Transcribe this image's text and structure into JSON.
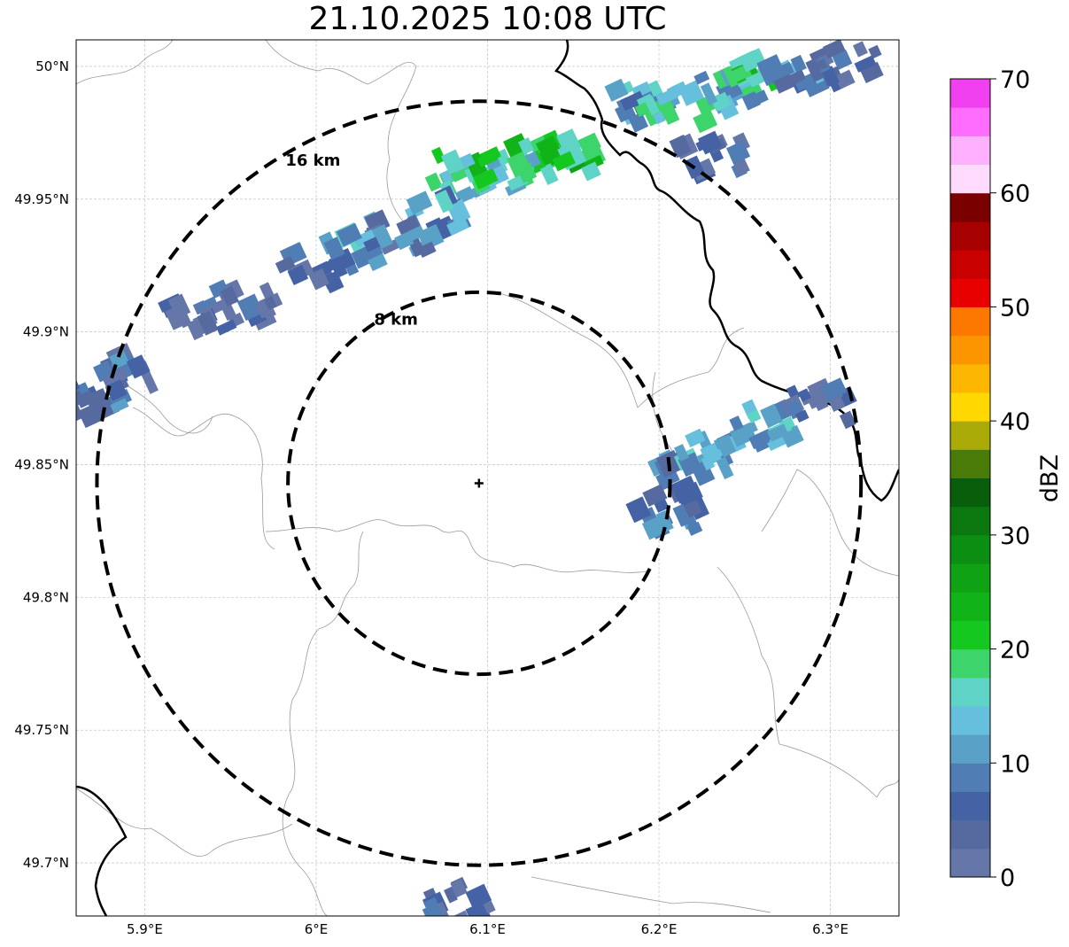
{
  "title": "21.10.2025 10:08 UTC",
  "map": {
    "x_ticks": [
      "5.9°E",
      "6°E",
      "6.1°E",
      "6.2°E",
      "6.3°E"
    ],
    "y_ticks": [
      "50°N",
      "49.95°N",
      "49.9°N",
      "49.85°N",
      "49.8°N",
      "49.75°N",
      "49.7°N"
    ],
    "x_tick_values": [
      5.9,
      6.0,
      6.1,
      6.2,
      6.3
    ],
    "y_tick_values": [
      50.0,
      49.95,
      49.9,
      49.85,
      49.8,
      49.75,
      49.7
    ],
    "lon_range": [
      5.86,
      6.34
    ],
    "lat_range": [
      49.68,
      50.01
    ],
    "gridlines": true,
    "center": {
      "lon": 6.095,
      "lat": 49.843
    },
    "rings": [
      {
        "radius_km": 8,
        "label": "8 km"
      },
      {
        "radius_km": 16,
        "label": "16 km"
      }
    ]
  },
  "colorbar": {
    "label": "dBZ",
    "ticks": [
      "0",
      "10",
      "20",
      "30",
      "40",
      "50",
      "60",
      "70"
    ],
    "tick_values": [
      0,
      10,
      20,
      30,
      40,
      50,
      60,
      70
    ],
    "range": [
      0,
      70
    ],
    "levels": [
      0,
      2.5,
      5,
      7.5,
      10,
      12.5,
      15,
      17.5,
      20,
      22.5,
      25,
      27.5,
      30,
      32.5,
      35,
      37.5,
      40,
      42.5,
      45,
      47.5,
      50,
      52.5,
      55,
      57.5,
      60,
      62.5,
      65,
      67.5,
      70
    ],
    "colors": [
      "#6577a8",
      "#566aa0",
      "#4462a4",
      "#4f7db4",
      "#5aa1c8",
      "#66bfdc",
      "#5fd3c6",
      "#3dd46c",
      "#15c820",
      "#10b418",
      "#0ea214",
      "#0c8e12",
      "#0a780f",
      "#085e0b",
      "#4a7a08",
      "#aaab08",
      "#fed800",
      "#fdb700",
      "#fd9500",
      "#fd7800",
      "#e80000",
      "#c80000",
      "#a60000",
      "#7a0000",
      "#ffdcff",
      "#ffb0ff",
      "#ff6dff",
      "#f040f0"
    ],
    "top_color": "#f040f0"
  },
  "chart_data": {
    "type": "heatmap",
    "title": "21.10.2025 10:08 UTC",
    "colorbar_label": "dBZ",
    "value_range": [
      0,
      70
    ],
    "rain_cells": [
      {
        "lon": 6.19,
        "lat": 49.985,
        "dbz": 12
      },
      {
        "lon": 6.21,
        "lat": 49.985,
        "dbz": 17
      },
      {
        "lon": 6.24,
        "lat": 49.99,
        "dbz": 14
      },
      {
        "lon": 6.26,
        "lat": 50.0,
        "dbz": 20
      },
      {
        "lon": 6.28,
        "lat": 49.995,
        "dbz": 10
      },
      {
        "lon": 6.31,
        "lat": 50.0,
        "dbz": 6
      },
      {
        "lon": 6.23,
        "lat": 49.965,
        "dbz": 6
      },
      {
        "lon": 6.15,
        "lat": 49.967,
        "dbz": 22
      },
      {
        "lon": 6.13,
        "lat": 49.965,
        "dbz": 21
      },
      {
        "lon": 6.11,
        "lat": 49.96,
        "dbz": 16
      },
      {
        "lon": 6.085,
        "lat": 49.96,
        "dbz": 19
      },
      {
        "lon": 6.07,
        "lat": 49.945,
        "dbz": 12
      },
      {
        "lon": 6.05,
        "lat": 49.935,
        "dbz": 8
      },
      {
        "lon": 6.02,
        "lat": 49.93,
        "dbz": 13
      },
      {
        "lon": 6.0,
        "lat": 49.925,
        "dbz": 6
      },
      {
        "lon": 5.96,
        "lat": 49.91,
        "dbz": 5
      },
      {
        "lon": 5.93,
        "lat": 49.905,
        "dbz": 4
      },
      {
        "lon": 5.89,
        "lat": 49.885,
        "dbz": 7
      },
      {
        "lon": 5.87,
        "lat": 49.875,
        "dbz": 8
      },
      {
        "lon": 6.215,
        "lat": 49.845,
        "dbz": 10
      },
      {
        "lon": 6.23,
        "lat": 49.855,
        "dbz": 12
      },
      {
        "lon": 6.205,
        "lat": 49.83,
        "dbz": 8
      },
      {
        "lon": 6.26,
        "lat": 49.865,
        "dbz": 14
      },
      {
        "lon": 6.295,
        "lat": 49.873,
        "dbz": 4
      },
      {
        "lon": 6.085,
        "lat": 49.685,
        "dbz": 5
      }
    ]
  }
}
